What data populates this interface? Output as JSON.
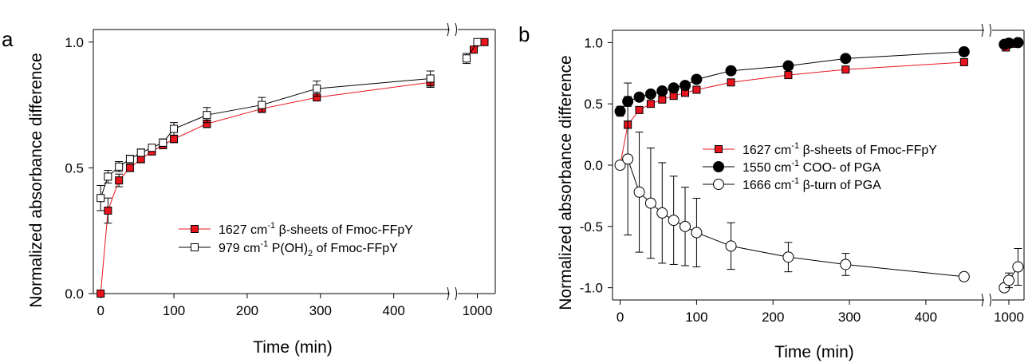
{
  "chart_data": [
    {
      "panel_label": "a",
      "type": "line",
      "xlabel": "Time (min)",
      "ylabel": "Normalized absorbance difference",
      "x_axis_break": {
        "before": 450,
        "after_range": [
          950,
          1050
        ]
      },
      "xlim_main": [
        -10,
        470
      ],
      "xticks": [
        0,
        100,
        200,
        300,
        400,
        1000
      ],
      "ylim": [
        0,
        1.05
      ],
      "yticks": [
        0.0,
        0.5,
        1.0
      ],
      "legend_position": "lower-right",
      "series": [
        {
          "name": "1627 cm-1 β-sheets of Fmoc-FFpY",
          "legend": {
            "number": "1627 cm",
            "sup": "-1",
            "beta": "β",
            "rest": "-sheets of Fmoc-FFpY"
          },
          "color": "#e8141e",
          "marker": "square-filled",
          "points": [
            {
              "x": 0,
              "y": 0.0,
              "err": 0.0
            },
            {
              "x": 10,
              "y": 0.33,
              "err": 0.05
            },
            {
              "x": 25,
              "y": 0.45,
              "err": 0.025
            },
            {
              "x": 40,
              "y": 0.5,
              "err": 0.015
            },
            {
              "x": 55,
              "y": 0.535,
              "err": 0.015
            },
            {
              "x": 70,
              "y": 0.565,
              "err": 0.01
            },
            {
              "x": 85,
              "y": 0.59,
              "err": 0.01
            },
            {
              "x": 100,
              "y": 0.615,
              "err": 0.015
            },
            {
              "x": 145,
              "y": 0.675,
              "err": 0.015
            },
            {
              "x": 220,
              "y": 0.735,
              "err": 0.01
            },
            {
              "x": 295,
              "y": 0.78,
              "err": 0.01
            },
            {
              "x": 450,
              "y": 0.84,
              "err": 0.02
            },
            {
              "x": 990,
              "y": 0.97,
              "err": 0.01
            },
            {
              "x": 1020,
              "y": 1.0,
              "err": 0.0
            }
          ]
        },
        {
          "name": "979 cm-1 P(OH)2 of Fmoc-FFpY",
          "legend": {
            "number": "979 cm",
            "sup": "-1",
            "rest": " P(OH)",
            "sub": "2",
            "tail": " of Fmoc-FFpY"
          },
          "color": "#ffffff",
          "marker": "square-open",
          "points": [
            {
              "x": 0,
              "y": 0.38,
              "err": 0.05
            },
            {
              "x": 10,
              "y": 0.465,
              "err": 0.025
            },
            {
              "x": 25,
              "y": 0.505,
              "err": 0.02
            },
            {
              "x": 40,
              "y": 0.535,
              "err": 0.015
            },
            {
              "x": 55,
              "y": 0.56,
              "err": 0.015
            },
            {
              "x": 70,
              "y": 0.58,
              "err": 0.01
            },
            {
              "x": 85,
              "y": 0.6,
              "err": 0.015
            },
            {
              "x": 100,
              "y": 0.655,
              "err": 0.025
            },
            {
              "x": 145,
              "y": 0.71,
              "err": 0.03
            },
            {
              "x": 220,
              "y": 0.75,
              "err": 0.03
            },
            {
              "x": 295,
              "y": 0.815,
              "err": 0.03
            },
            {
              "x": 450,
              "y": 0.855,
              "err": 0.03
            },
            {
              "x": 970,
              "y": 0.935,
              "err": 0.02
            },
            {
              "x": 1000,
              "y": 1.0,
              "err": 0.0
            }
          ]
        }
      ]
    },
    {
      "panel_label": "b",
      "type": "line",
      "xlabel": "Time (min)",
      "ylabel": "Normalized absorbance difference",
      "x_axis_break": {
        "before": 450,
        "after_range": [
          950,
          1050
        ]
      },
      "xlim_main": [
        -10,
        470
      ],
      "xticks": [
        0,
        100,
        200,
        300,
        400,
        1000
      ],
      "ylim": [
        -1.1,
        1.1
      ],
      "yticks": [
        -1.0,
        -0.5,
        0.0,
        0.5,
        1.0
      ],
      "legend_position": "center-right",
      "series": [
        {
          "name": "1627 cm-1 β-sheets of Fmoc-FFpY",
          "legend": {
            "number": "1627 cm",
            "sup": "-1",
            "beta": "β",
            "rest": "-sheets of Fmoc-FFpY"
          },
          "color": "#e8141e",
          "marker": "square-filled",
          "points": [
            {
              "x": 0,
              "y": 0.0,
              "err": 0.0
            },
            {
              "x": 10,
              "y": 0.33,
              "err": 0.03
            },
            {
              "x": 25,
              "y": 0.45,
              "err": 0.02
            },
            {
              "x": 40,
              "y": 0.5,
              "err": 0.02
            },
            {
              "x": 55,
              "y": 0.535,
              "err": 0.015
            },
            {
              "x": 70,
              "y": 0.565,
              "err": 0.015
            },
            {
              "x": 85,
              "y": 0.59,
              "err": 0.01
            },
            {
              "x": 100,
              "y": 0.615,
              "err": 0.01
            },
            {
              "x": 145,
              "y": 0.675,
              "err": 0.01
            },
            {
              "x": 220,
              "y": 0.735,
              "err": 0.01
            },
            {
              "x": 295,
              "y": 0.78,
              "err": 0.01
            },
            {
              "x": 450,
              "y": 0.84,
              "err": 0.01
            },
            {
              "x": 990,
              "y": 0.96,
              "err": 0.01
            },
            {
              "x": 1020,
              "y": 0.99,
              "err": 0.01
            }
          ]
        },
        {
          "name": "1550 cm-1 COO- of PGA",
          "legend": {
            "number": "1550 cm",
            "sup": "-1",
            "rest": " COO- of PGA"
          },
          "color": "#000000",
          "marker": "circle-filled",
          "points": [
            {
              "x": 0,
              "y": 0.44,
              "err": 0.04
            },
            {
              "x": 10,
              "y": 0.52,
              "err": 0.04
            },
            {
              "x": 25,
              "y": 0.555,
              "err": 0.03
            },
            {
              "x": 40,
              "y": 0.58,
              "err": 0.03
            },
            {
              "x": 55,
              "y": 0.605,
              "err": 0.03
            },
            {
              "x": 70,
              "y": 0.63,
              "err": 0.03
            },
            {
              "x": 85,
              "y": 0.65,
              "err": 0.03
            },
            {
              "x": 100,
              "y": 0.7,
              "err": 0.03
            },
            {
              "x": 145,
              "y": 0.77,
              "err": 0.03
            },
            {
              "x": 220,
              "y": 0.81,
              "err": 0.03
            },
            {
              "x": 295,
              "y": 0.87,
              "err": 0.03
            },
            {
              "x": 450,
              "y": 0.925,
              "err": 0.03
            },
            {
              "x": 985,
              "y": 0.985,
              "err": 0.02
            },
            {
              "x": 1000,
              "y": 0.995,
              "err": 0.02
            },
            {
              "x": 1030,
              "y": 1.0,
              "err": 0.02
            }
          ]
        },
        {
          "name": "1666 cm-1 β-turn of PGA",
          "legend": {
            "number": "1666 cm",
            "sup": "-1",
            "beta": "β",
            "rest": "-turn of PGA"
          },
          "color": "#ffffff",
          "marker": "circle-open",
          "points": [
            {
              "x": 0,
              "y": 0.0,
              "err": 0.0
            },
            {
              "x": 10,
              "y": 0.05,
              "err": 0.62
            },
            {
              "x": 25,
              "y": -0.22,
              "err": 0.49
            },
            {
              "x": 40,
              "y": -0.31,
              "err": 0.45
            },
            {
              "x": 55,
              "y": -0.39,
              "err": 0.41
            },
            {
              "x": 70,
              "y": -0.45,
              "err": 0.36
            },
            {
              "x": 85,
              "y": -0.5,
              "err": 0.32
            },
            {
              "x": 100,
              "y": -0.55,
              "err": 0.28
            },
            {
              "x": 145,
              "y": -0.66,
              "err": 0.19
            },
            {
              "x": 220,
              "y": -0.75,
              "err": 0.12
            },
            {
              "x": 295,
              "y": -0.81,
              "err": 0.09
            },
            {
              "x": 450,
              "y": -0.91,
              "err": 0.03
            },
            {
              "x": 985,
              "y": -1.0,
              "err": 0.0
            },
            {
              "x": 1000,
              "y": -0.94,
              "err": 0.06
            },
            {
              "x": 1030,
              "y": -0.83,
              "err": 0.15
            }
          ]
        }
      ]
    }
  ]
}
